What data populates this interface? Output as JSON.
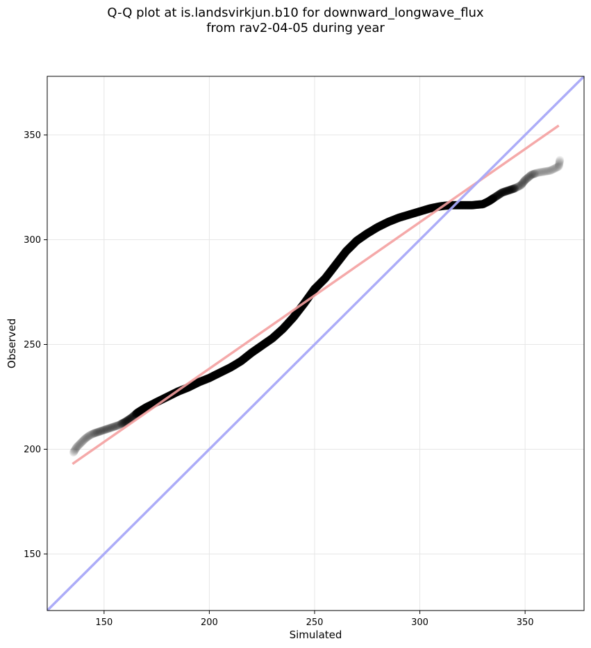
{
  "chart_data": {
    "type": "scatter",
    "title": "Q-Q plot at is.landsvirkjun.b10 for downward_longwave_flux",
    "subtitle": "from rav2-04-05 during year",
    "xlabel": "Simulated",
    "ylabel": "Observed",
    "xlim": [
      123,
      378
    ],
    "ylim": [
      123,
      378
    ],
    "xticks": [
      150,
      200,
      250,
      300,
      350
    ],
    "yticks": [
      150,
      200,
      250,
      300,
      350
    ],
    "grid": true,
    "colors": {
      "points": "#000000",
      "fit_line": "#f4a0a0",
      "identity_line": "#a8a8f8"
    },
    "series": [
      {
        "kind": "points",
        "points": [
          [
            135.5,
            198.5
          ],
          [
            137,
            201
          ],
          [
            139,
            203
          ],
          [
            141,
            205
          ],
          [
            143,
            206.5
          ],
          [
            145,
            207.5
          ],
          [
            148,
            208.5
          ],
          [
            151,
            209.5
          ],
          [
            154,
            210.5
          ],
          [
            157,
            211.5
          ],
          [
            160,
            213
          ],
          [
            163,
            215
          ],
          [
            166,
            217.5
          ],
          [
            170,
            220
          ],
          [
            175,
            222.5
          ],
          [
            180,
            225
          ],
          [
            185,
            227.5
          ],
          [
            190,
            229.5
          ],
          [
            195,
            232
          ],
          [
            200,
            234
          ],
          [
            205,
            236.5
          ],
          [
            210,
            239
          ],
          [
            215,
            242
          ],
          [
            220,
            246
          ],
          [
            225,
            249.5
          ],
          [
            230,
            253
          ],
          [
            235,
            257.5
          ],
          [
            240,
            263
          ],
          [
            245,
            269.5
          ],
          [
            250,
            276.5
          ],
          [
            255,
            281.5
          ],
          [
            260,
            288
          ],
          [
            265,
            294.5
          ],
          [
            270,
            299.5
          ],
          [
            275,
            303
          ],
          [
            280,
            306
          ],
          [
            285,
            308.5
          ],
          [
            290,
            310.5
          ],
          [
            295,
            312
          ],
          [
            300,
            313.5
          ],
          [
            305,
            315
          ],
          [
            310,
            316
          ],
          [
            315,
            316.5
          ],
          [
            320,
            316.5
          ],
          [
            325,
            316.5
          ],
          [
            330,
            317
          ],
          [
            333,
            318.5
          ],
          [
            336,
            320.5
          ],
          [
            339,
            322.5
          ],
          [
            342,
            323.5
          ],
          [
            345,
            324.5
          ],
          [
            348,
            326
          ],
          [
            350,
            328.5
          ],
          [
            353,
            331
          ],
          [
            356,
            332
          ],
          [
            359,
            332.5
          ],
          [
            362,
            333
          ],
          [
            366,
            335
          ],
          [
            366.5,
            338
          ]
        ]
      },
      {
        "kind": "fit-line",
        "points": [
          [
            135,
            193
          ],
          [
            366,
            354.5
          ]
        ]
      },
      {
        "kind": "identity-line",
        "points": [
          [
            123,
            123
          ],
          [
            378,
            378
          ]
        ]
      }
    ]
  }
}
